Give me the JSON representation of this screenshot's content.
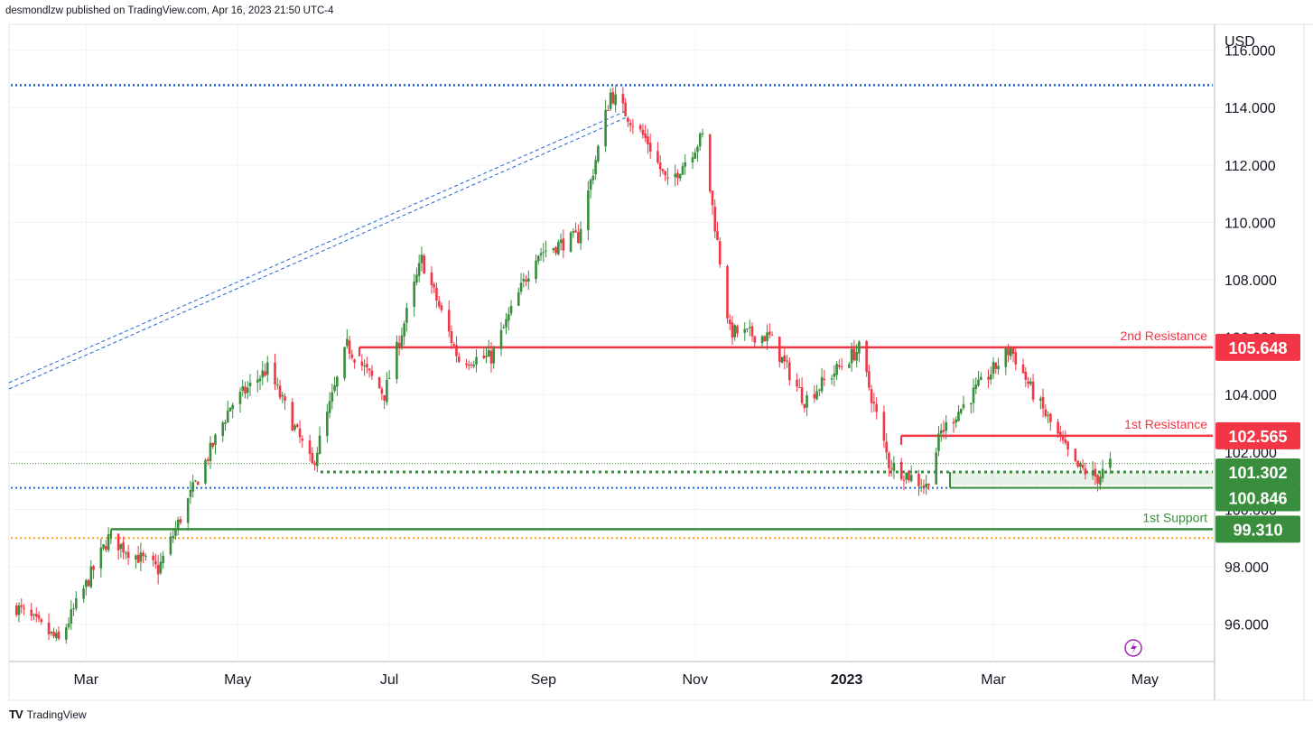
{
  "header": {
    "publisher": "desmondlzw published on TradingView.com, Apr 16, 2023 21:50 UTC-4"
  },
  "footer": {
    "brand": "TradingView",
    "logo": "TV"
  },
  "colors": {
    "up": "#388e3c",
    "down": "#f23645",
    "resistance": "#f23645",
    "support": "#388e3c",
    "blue_dotted": "#1e63d4",
    "orange_dotted": "#f5a623",
    "grid": "#f0f3fa",
    "text": "#131722"
  },
  "chart_data": {
    "type": "candlestick",
    "instrument_currency": "USD",
    "x_ticks": [
      "Mar",
      "May",
      "Jul",
      "Sep",
      "Nov",
      "2023",
      "Mar",
      "May"
    ],
    "y_ticks": [
      "116.000",
      "114.000",
      "112.000",
      "110.000",
      "108.000",
      "106.000",
      "104.000",
      "102.000",
      "100.000",
      "98.000",
      "96.000"
    ],
    "ylim": [
      94.7,
      116.9
    ],
    "levels": [
      {
        "name": "2nd Resistance",
        "value": "105.648",
        "kind": "resistance"
      },
      {
        "name": "1st Resistance",
        "value": "102.565",
        "kind": "resistance"
      },
      {
        "name": "",
        "value": "101.302",
        "kind": "support"
      },
      {
        "name": "",
        "value": "100.846",
        "kind": "support"
      },
      {
        "name": "1st Support",
        "value": "99.310",
        "kind": "support"
      }
    ],
    "swing_path": {
      "dates": [
        "2022-02-01",
        "2022-02-18",
        "2022-03-10",
        "2022-03-30",
        "2022-04-12",
        "2022-04-28",
        "2022-05-13",
        "2022-05-31",
        "2022-06-14",
        "2022-06-29",
        "2022-07-14",
        "2022-07-29",
        "2022-08-11",
        "2022-08-29",
        "2022-09-15",
        "2022-09-28",
        "2022-10-13",
        "2022-10-21",
        "2022-11-04",
        "2022-11-15",
        "2022-12-01",
        "2022-12-15",
        "2023-01-06",
        "2023-01-18",
        "2023-02-02",
        "2023-02-08",
        "2023-03-08",
        "2023-03-16",
        "2023-04-03",
        "2023-04-12",
        "2023-04-17"
      ],
      "values": [
        96.6,
        95.4,
        99.0,
        97.9,
        100.5,
        103.6,
        104.9,
        101.5,
        105.7,
        104.0,
        108.7,
        105.2,
        105.3,
        108.9,
        109.5,
        114.5,
        112.8,
        111.3,
        113.0,
        106.2,
        106.0,
        103.8,
        105.6,
        101.6,
        100.8,
        102.7,
        105.6,
        104.2,
        101.5,
        101.1,
        101.6
      ]
    }
  }
}
